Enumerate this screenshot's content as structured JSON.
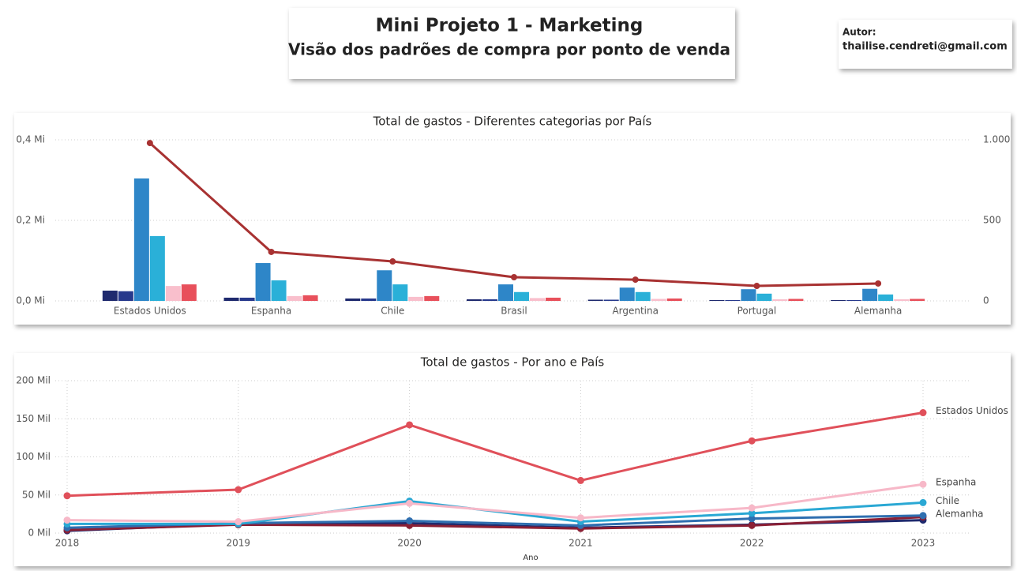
{
  "header": {
    "title": "Mini Projeto 1 - Marketing",
    "subtitle": "Visão dos padrões de compra por ponto de venda"
  },
  "author": {
    "label": "Autor:",
    "email": "thailise.cendreti@gmail.com"
  },
  "chart_data": [
    {
      "type": "bar",
      "title": "Total de gastos - Diferentes categorias por País",
      "categories": [
        "Estados Unidos",
        "Espanha",
        "Chile",
        "Brasil",
        "Argentina",
        "Portugal",
        "Alemanha"
      ],
      "ylim": [
        0,
        0.4
      ],
      "yticks": [
        {
          "value": 0,
          "label": "0,0 Mi"
        },
        {
          "value": 0.2,
          "label": "0,2 Mi"
        },
        {
          "value": 0.4,
          "label": "0,4 Mi"
        }
      ],
      "y2lim": [
        0,
        1000
      ],
      "y2ticks": [
        0,
        500,
        {
          "value": 1000,
          "label": "1.000"
        }
      ],
      "grid": true,
      "series": [
        {
          "color": "#1f2a6e",
          "values": [
            0.0255,
            0.008,
            0.006,
            0.004,
            0.003,
            0.002,
            0.002
          ]
        },
        {
          "color": "#27398c",
          "values": [
            0.024,
            0.008,
            0.006,
            0.004,
            0.003,
            0.002,
            0.002
          ]
        },
        {
          "color": "#2e86c8",
          "values": [
            0.304,
            0.094,
            0.076,
            0.041,
            0.033,
            0.029,
            0.03
          ]
        },
        {
          "color": "#2ab0d8",
          "values": [
            0.161,
            0.051,
            0.041,
            0.022,
            0.022,
            0.018,
            0.016
          ]
        },
        {
          "color": "#f9bfcc",
          "values": [
            0.037,
            0.012,
            0.01,
            0.007,
            0.005,
            0.004,
            0.004
          ]
        },
        {
          "color": "#e8505b",
          "values": [
            0.041,
            0.014,
            0.012,
            0.008,
            0.006,
            0.005,
            0.005
          ]
        },
        {
          "type": "line",
          "axis": "y2",
          "color": "#a83232",
          "values": [
            980,
            304,
            245,
            147,
            132,
            93,
            108
          ]
        }
      ]
    },
    {
      "type": "line",
      "title": "Total de gastos - Por ano e País",
      "x_label": "Ano",
      "x": [
        2018,
        2019,
        2020,
        2021,
        2022,
        2023
      ],
      "xlim": [
        2018,
        2023
      ],
      "xticks": [
        2018,
        2019,
        2020,
        2021,
        2022,
        2023
      ],
      "ylim": [
        0,
        200
      ],
      "yticks": [
        {
          "value": 0,
          "label": "0 Mil"
        },
        {
          "value": 50,
          "label": "50 Mil"
        },
        {
          "value": 100,
          "label": "100 Mil"
        },
        {
          "value": 150,
          "label": "150 Mil"
        },
        {
          "value": 200,
          "label": "200 Mil"
        }
      ],
      "grid": true,
      "series": [
        {
          "color": "#1f2a6e",
          "values": [
            3,
            12,
            13,
            7,
            11,
            17
          ]
        },
        {
          "color": "#8b2035",
          "values": [
            4,
            11,
            10,
            6,
            10,
            21
          ]
        },
        {
          "name": "Alemanha",
          "color": "#2f6fb0",
          "values": [
            7,
            13,
            16,
            10,
            19,
            23
          ]
        },
        {
          "name": "Chile",
          "color": "#2aa8d4",
          "values": [
            12,
            12,
            42,
            15,
            26,
            40
          ]
        },
        {
          "name": "Espanha",
          "color": "#f7b8c8",
          "values": [
            17,
            15,
            39,
            20,
            33,
            64
          ]
        },
        {
          "name": "Estados Unidos",
          "color": "#e0505a",
          "values": [
            49,
            57,
            142,
            69,
            121,
            158
          ]
        }
      ]
    }
  ]
}
